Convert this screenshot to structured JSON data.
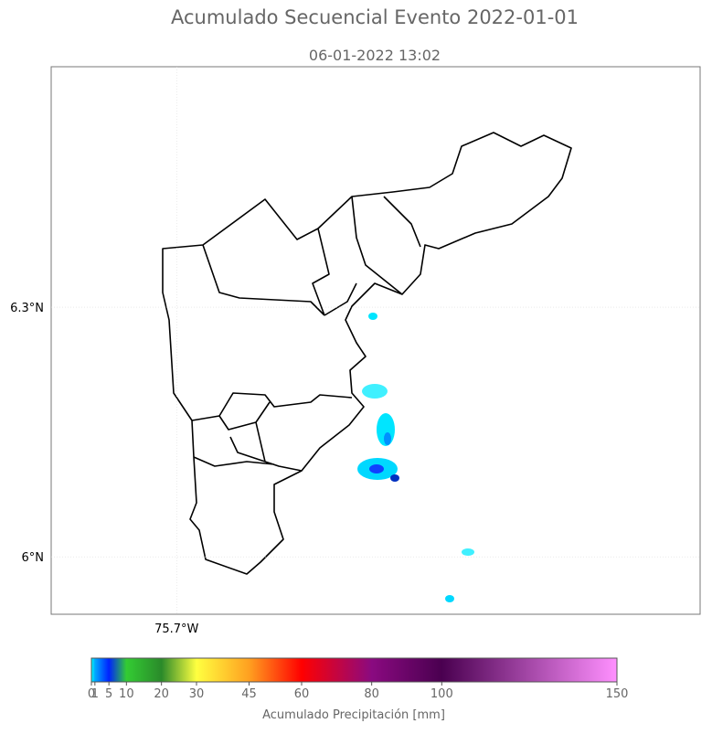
{
  "map": {
    "title": "Acumulado Secuencial Evento 2022-01-01",
    "subtitle": "06-01-2022 13:02",
    "lat_lim": [
      5.931,
      6.589
    ],
    "lon_lim": [
      -75.851,
      -75.07
    ],
    "lat_ticks": [
      {
        "value": 6.3,
        "label": "6.3°N"
      },
      {
        "value": 6.0,
        "label": "6°N"
      }
    ],
    "lon_ticks": [
      {
        "value": -75.7,
        "label": "75.7°W"
      }
    ],
    "colorbar": {
      "label": "Acumulado Precipitación [mm]",
      "lim": [
        0,
        150
      ],
      "ticks": [
        0,
        1,
        5,
        10,
        20,
        30,
        45,
        60,
        80,
        100,
        150
      ],
      "colors": [
        "#00ffff",
        "#00aaff",
        "#0022ff",
        "#33cc33",
        "#2a8a2a",
        "#ffff40",
        "#ffa020",
        "#ff0000",
        "#8a0a80",
        "#4a0050",
        "#ff90ff"
      ]
    }
  }
}
